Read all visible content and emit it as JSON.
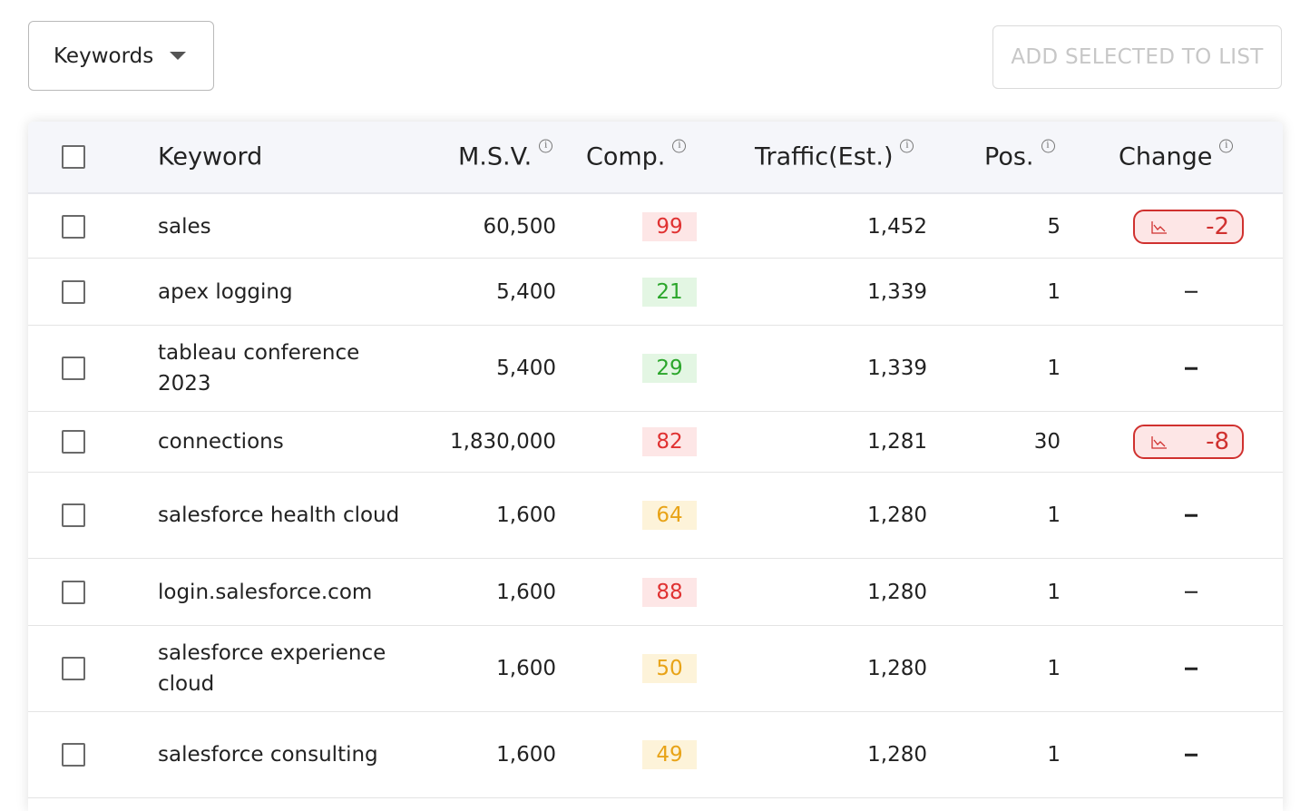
{
  "toolbar": {
    "dropdown_label": "Keywords",
    "add_button_label": "ADD SELECTED TO LIST"
  },
  "table": {
    "headers": {
      "keyword": "Keyword",
      "msv": "M.S.V.",
      "comp": "Comp.",
      "traffic": "Traffic(Est.)",
      "pos": "Pos.",
      "change": "Change"
    },
    "info_glyph": "i",
    "rows": [
      {
        "keyword": "sales",
        "msv": "60,500",
        "comp": "99",
        "comp_level": "red",
        "traffic": "1,452",
        "pos": "5",
        "change": "-2"
      },
      {
        "keyword": "apex logging",
        "msv": "5,400",
        "comp": "21",
        "comp_level": "green",
        "traffic": "1,339",
        "pos": "1",
        "change": "–"
      },
      {
        "keyword": "tableau conference 2023",
        "msv": "5,400",
        "comp": "29",
        "comp_level": "green",
        "traffic": "1,339",
        "pos": "1",
        "change": "–"
      },
      {
        "keyword": "connections",
        "msv": "1,830,000",
        "comp": "82",
        "comp_level": "red",
        "traffic": "1,281",
        "pos": "30",
        "change": "-8"
      },
      {
        "keyword": "salesforce health cloud",
        "msv": "1,600",
        "comp": "64",
        "comp_level": "yellow",
        "traffic": "1,280",
        "pos": "1",
        "change": "–"
      },
      {
        "keyword": "login.salesforce.com",
        "msv": "1,600",
        "comp": "88",
        "comp_level": "red",
        "traffic": "1,280",
        "pos": "1",
        "change": "–"
      },
      {
        "keyword": "salesforce experience cloud",
        "msv": "1,600",
        "comp": "50",
        "comp_level": "yellow",
        "traffic": "1,280",
        "pos": "1",
        "change": "–"
      },
      {
        "keyword": "salesforce consulting",
        "msv": "1,600",
        "comp": "49",
        "comp_level": "yellow",
        "traffic": "1,280",
        "pos": "1",
        "change": "–"
      }
    ]
  },
  "colors": {
    "comp_red": "#e03131",
    "comp_green": "#2ba62b",
    "comp_yellow": "#e8a317",
    "change_negative": "#d0312f"
  }
}
